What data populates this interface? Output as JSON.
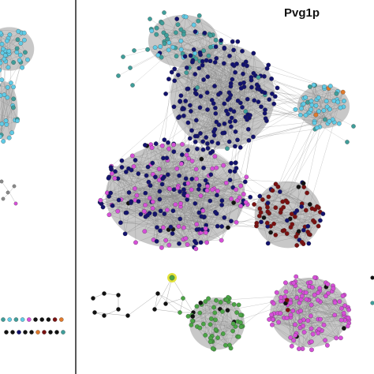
{
  "figure": {
    "panel_title": "Pvg1p",
    "colors": {
      "navy": "#12126e",
      "magenta": "#d64fd8",
      "teal": "#3f9e9a",
      "cyan": "#5fcbe6",
      "maroon": "#7a1010",
      "black": "#111111",
      "green": "#4aa545",
      "orange": "#e07a2c",
      "highlight_ring": "#e2e23a",
      "edge": "#8a8a8a",
      "divider": "#222222"
    }
  }
}
